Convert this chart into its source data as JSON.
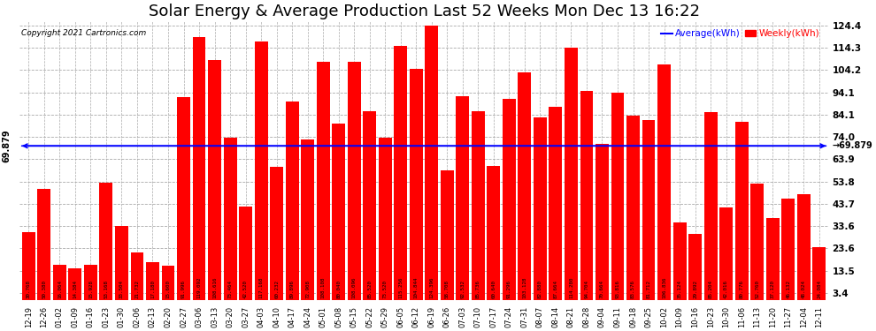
{
  "title": "Solar Energy & Average Production Last 52 Weeks Mon Dec 13 16:22",
  "copyright": "Copyright 2021 Cartronics.com",
  "legend_avg": "Average(kWh)",
  "legend_weekly": "Weekly(kWh)",
  "average_value": 69.879,
  "bar_color": "#FF0000",
  "avg_line_color": "#0000FF",
  "background_color": "#FFFFFF",
  "grid_color": "#AAAAAA",
  "title_fontsize": 13,
  "ylabel_right_values": [
    124.4,
    114.3,
    104.2,
    94.1,
    84.1,
    74.0,
    63.9,
    53.8,
    43.7,
    33.6,
    23.6,
    13.5,
    3.4
  ],
  "categories": [
    "12-19",
    "12-26",
    "01-02",
    "01-09",
    "01-16",
    "01-23",
    "01-30",
    "02-06",
    "02-13",
    "02-20",
    "02-27",
    "03-06",
    "03-13",
    "03-20",
    "03-27",
    "04-03",
    "04-10",
    "04-17",
    "04-24",
    "05-01",
    "05-08",
    "05-15",
    "05-22",
    "05-29",
    "06-05",
    "06-12",
    "06-19",
    "06-26",
    "07-03",
    "07-10",
    "07-17",
    "07-24",
    "07-31",
    "08-07",
    "08-14",
    "08-21",
    "08-28",
    "09-04",
    "09-11",
    "09-18",
    "09-25",
    "10-02",
    "10-09",
    "10-16",
    "10-23",
    "10-30",
    "11-06",
    "11-13",
    "11-20",
    "11-27",
    "12-04",
    "12-11"
  ],
  "values": [
    30.768,
    50.38,
    16.064,
    14.384,
    15.928,
    53.168,
    33.504,
    21.732,
    17.18,
    15.6,
    91.996,
    119.092,
    108.616,
    73.464,
    42.52,
    117.168,
    60.232,
    89.896,
    72.908,
    108.108,
    80.04,
    108.096,
    85.52,
    73.52,
    115.256,
    104.844,
    124.396,
    58.708,
    92.532,
    85.736,
    60.64,
    91.296,
    103.128,
    82.88,
    87.664,
    114.28,
    94.704,
    70.664,
    93.816,
    83.576,
    81.712,
    106.836,
    35.124,
    29.892,
    85.204,
    42.016,
    80.776,
    52.76,
    37.12,
    46.132,
    48.024,
    24.084
  ]
}
